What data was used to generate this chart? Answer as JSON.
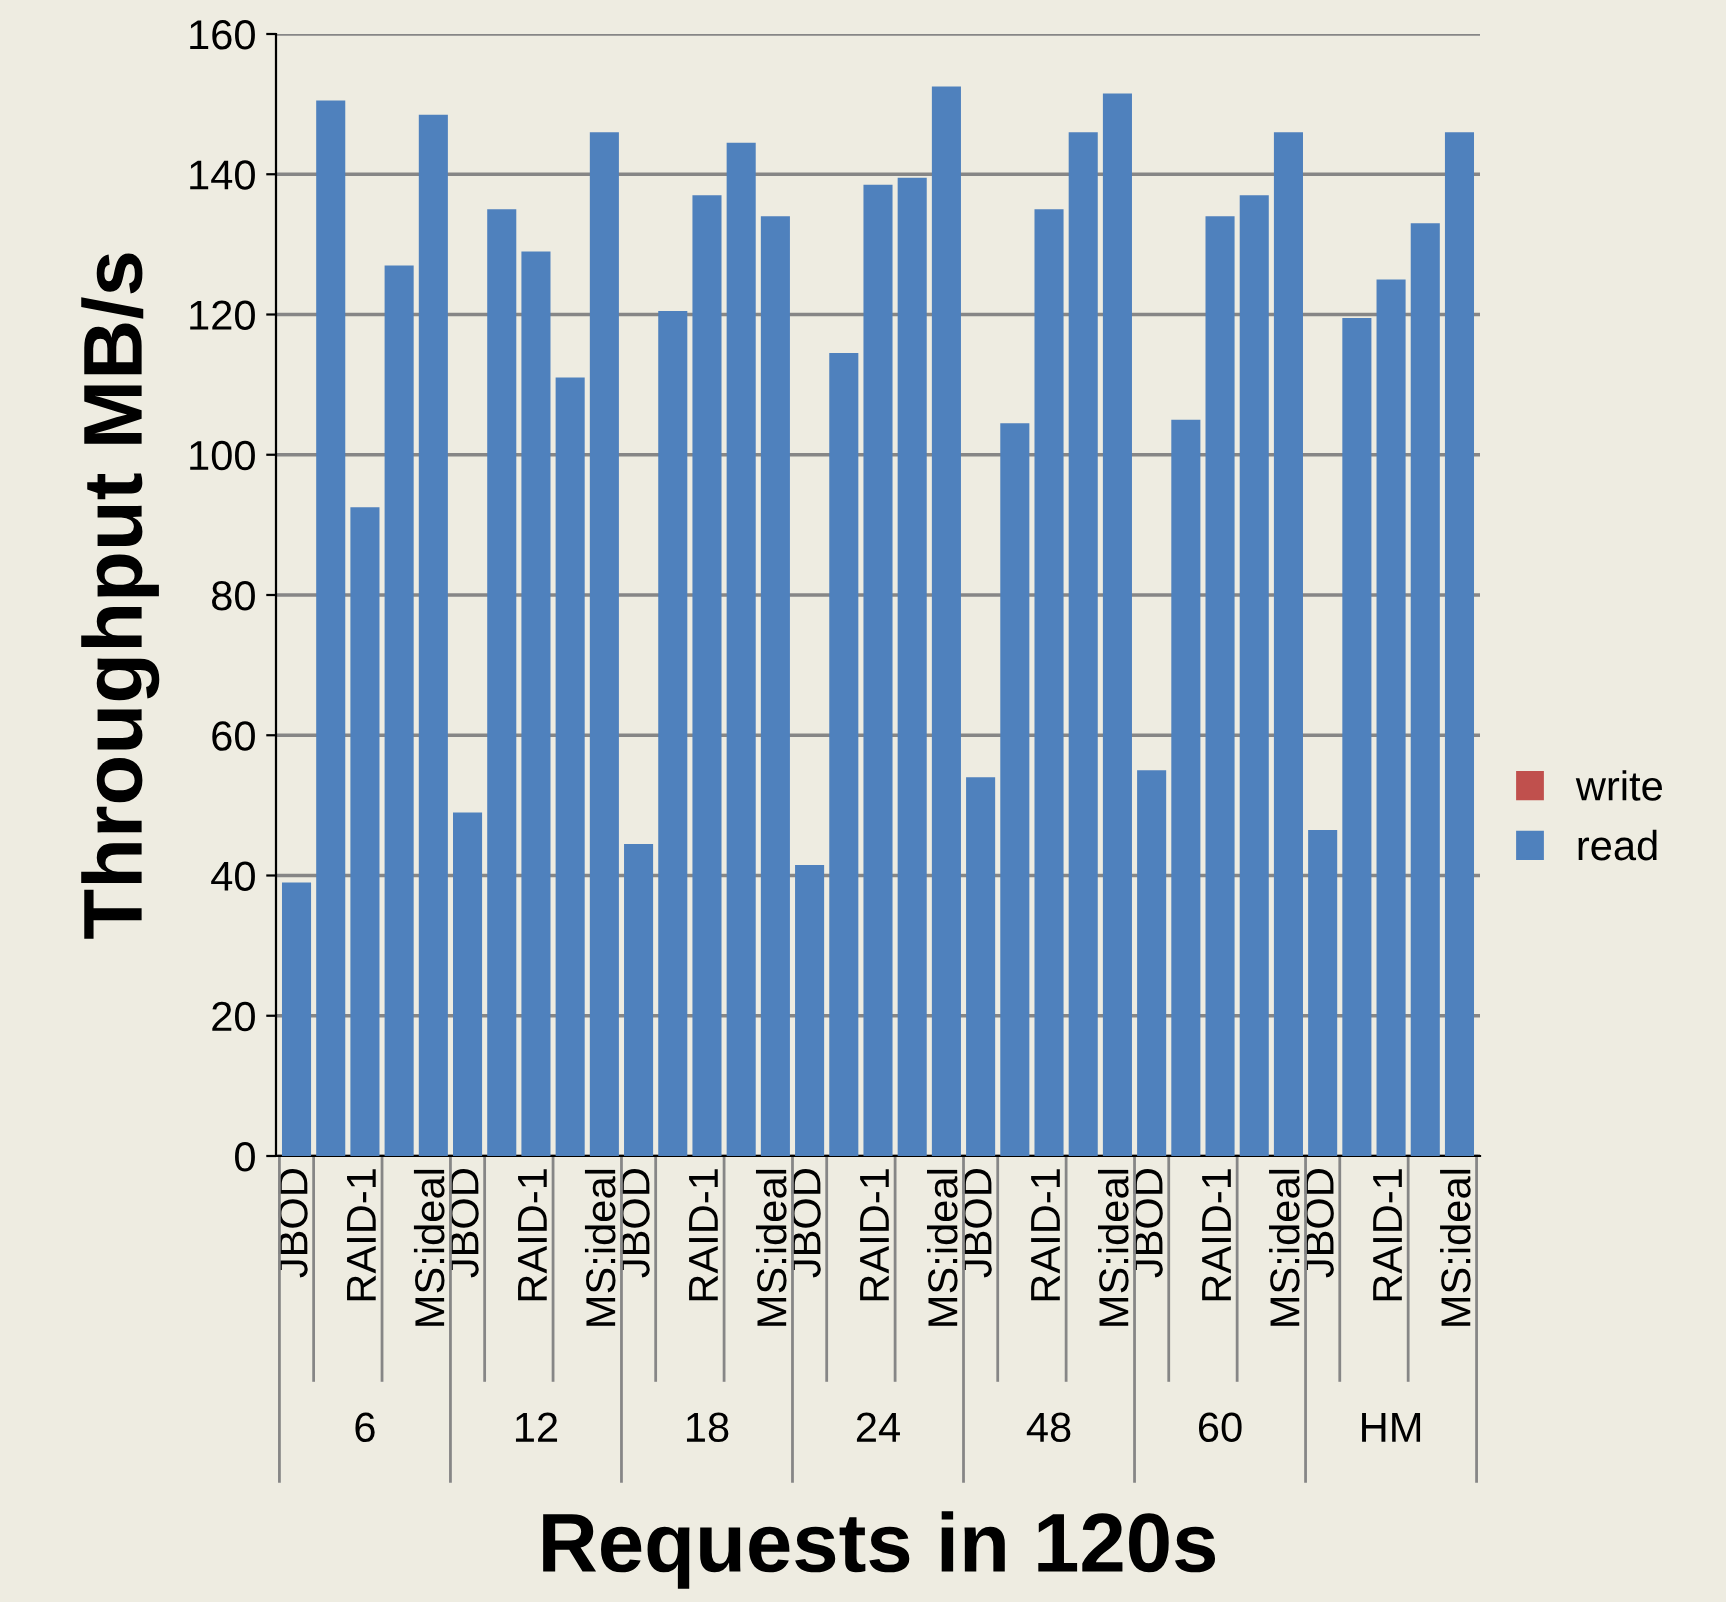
{
  "chart_data": {
    "type": "bar",
    "stacked": true,
    "xlabel": "Requests in 120s",
    "ylabel": "Throughput MB/s",
    "categories": [
      "JBOD",
      null,
      "RAID-1",
      null,
      "MS:ideal",
      "JBOD",
      null,
      "RAID-1",
      null,
      "MS:ideal",
      "JBOD",
      null,
      "RAID-1",
      null,
      "MS:ideal",
      "JBOD",
      null,
      "RAID-1",
      null,
      "MS:ideal",
      "JBOD",
      null,
      "RAID-1",
      null,
      "MS:ideal",
      "JBOD",
      null,
      "RAID-1",
      null,
      "MS:ideal",
      "JBOD",
      null,
      "RAID-1",
      null,
      "MS:ideal"
    ],
    "series": [
      {
        "name": "read",
        "color": "#4f81bd",
        "values": [
          39,
          150.5,
          92.5,
          127,
          148.5,
          49,
          135,
          129,
          111,
          146,
          44.5,
          120.5,
          137,
          144.5,
          134,
          41.5,
          114.5,
          138.5,
          139.5,
          152.5,
          54,
          104.5,
          135,
          146,
          151.5,
          55,
          105,
          134,
          137,
          146,
          46.5,
          119.5,
          125,
          133,
          146
        ]
      },
      {
        "name": "write",
        "color": "#c0504d",
        "values": [
          0,
          0,
          0,
          0,
          0,
          0,
          0,
          0,
          0,
          0,
          0,
          0,
          0,
          0,
          0,
          0,
          0,
          0,
          0,
          0,
          0,
          0,
          0,
          0,
          0,
          0,
          0,
          0,
          0,
          0,
          0,
          0,
          0,
          0,
          0
        ]
      }
    ],
    "annotations": [
      "6",
      "12",
      "18",
      "24",
      "48",
      "60",
      "HM"
    ],
    "ylim": [
      0,
      160
    ],
    "yticks": [
      0,
      20,
      40,
      60,
      80,
      100,
      120,
      140,
      160
    ],
    "grid": "y",
    "legend": "right"
  }
}
